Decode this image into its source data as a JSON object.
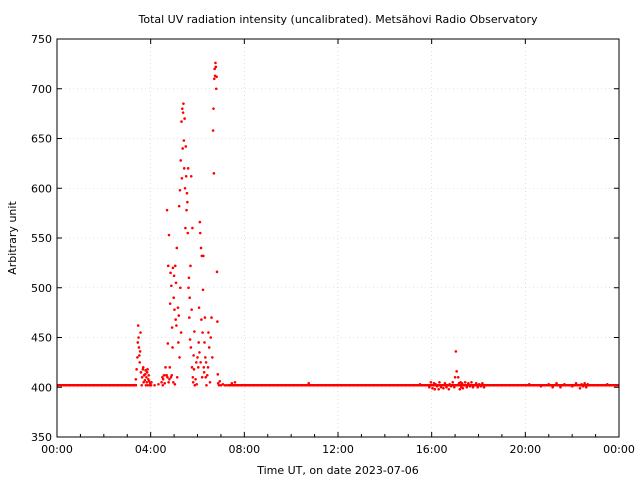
{
  "chart_data": {
    "type": "scatter",
    "title": "Total UV radiation intensity (uncalibrated). Metsähovi Radio Observatory",
    "xlabel": "Time UT, on date 2023-07-06",
    "ylabel": "Arbitrary unit",
    "xlim": [
      "00:00",
      "24:00"
    ],
    "ylim": [
      350,
      750
    ],
    "grid": true,
    "legend": "none",
    "x_ticks": [
      "00:00",
      "04:00",
      "08:00",
      "12:00",
      "16:00",
      "20:00",
      "00:00"
    ],
    "y_ticks": [
      350,
      400,
      450,
      500,
      550,
      600,
      650,
      700,
      750
    ],
    "marker_color": "#ff0000",
    "series": [
      {
        "baseline": {
          "value": 402,
          "time_ranges": [
            [
              "00:00",
              "03:25"
            ],
            [
              "07:20",
              "24:00"
            ]
          ]
        },
        "points": [
          [
            "03:22",
            408
          ],
          [
            "03:24",
            418
          ],
          [
            "03:26",
            430
          ],
          [
            "03:27",
            445
          ],
          [
            "03:28",
            462
          ],
          [
            "03:29",
            450
          ],
          [
            "03:30",
            440
          ],
          [
            "03:31",
            432
          ],
          [
            "03:32",
            425
          ],
          [
            "03:33",
            436
          ],
          [
            "03:34",
            455
          ],
          [
            "03:35",
            415
          ],
          [
            "03:37",
            402
          ],
          [
            "03:38",
            410
          ],
          [
            "03:40",
            418
          ],
          [
            "03:41",
            420
          ],
          [
            "03:42",
            405
          ],
          [
            "03:43",
            412
          ],
          [
            "03:45",
            407
          ],
          [
            "03:46",
            413
          ],
          [
            "03:47",
            417
          ],
          [
            "03:48",
            402
          ],
          [
            "03:49",
            410
          ],
          [
            "03:50",
            405
          ],
          [
            "03:51",
            415
          ],
          [
            "03:52",
            418
          ],
          [
            "03:53",
            402
          ],
          [
            "03:54",
            408
          ],
          [
            "03:55",
            412
          ],
          [
            "03:56",
            406
          ],
          [
            "03:58",
            402
          ],
          [
            "03:59",
            404
          ],
          [
            "04:00",
            402
          ],
          [
            "04:01",
            402
          ],
          [
            "04:02",
            405
          ],
          [
            "04:10",
            402
          ],
          [
            "04:20",
            403
          ],
          [
            "04:28",
            405
          ],
          [
            "04:30",
            410
          ],
          [
            "04:31",
            402
          ],
          [
            "04:32",
            408
          ],
          [
            "04:34",
            412
          ],
          [
            "04:36",
            404
          ],
          [
            "04:38",
            420
          ],
          [
            "04:40",
            412
          ],
          [
            "04:41",
            412
          ],
          [
            "04:42",
            578
          ],
          [
            "04:43",
            410
          ],
          [
            "04:44",
            444
          ],
          [
            "04:45",
            522
          ],
          [
            "04:46",
            405
          ],
          [
            "04:47",
            553
          ],
          [
            "04:48",
            408
          ],
          [
            "04:49",
            420
          ],
          [
            "04:50",
            484
          ],
          [
            "04:51",
            515
          ],
          [
            "04:52",
            410
          ],
          [
            "04:53",
            502
          ],
          [
            "04:54",
            412
          ],
          [
            "04:55",
            460
          ],
          [
            "04:56",
            440
          ],
          [
            "04:57",
            520
          ],
          [
            "04:58",
            405
          ],
          [
            "04:59",
            490
          ],
          [
            "05:00",
            512
          ],
          [
            "05:01",
            478
          ],
          [
            "05:02",
            403
          ],
          [
            "05:03",
            522
          ],
          [
            "05:04",
            468
          ],
          [
            "05:05",
            505
          ],
          [
            "05:06",
            462
          ],
          [
            "05:07",
            540
          ],
          [
            "05:08",
            410
          ],
          [
            "05:10",
            480
          ],
          [
            "05:11",
            445
          ],
          [
            "05:12",
            472
          ],
          [
            "05:13",
            582
          ],
          [
            "05:14",
            430
          ],
          [
            "05:15",
            598
          ],
          [
            "05:16",
            500
          ],
          [
            "05:17",
            628
          ],
          [
            "05:18",
            455
          ],
          [
            "05:19",
            667
          ],
          [
            "05:20",
            610
          ],
          [
            "05:21",
            680
          ],
          [
            "05:22",
            640
          ],
          [
            "05:23",
            676
          ],
          [
            "05:24",
            685
          ],
          [
            "05:25",
            648
          ],
          [
            "05:26",
            620
          ],
          [
            "05:27",
            670
          ],
          [
            "05:28",
            600
          ],
          [
            "05:29",
            560
          ],
          [
            "05:30",
            642
          ],
          [
            "05:31",
            612
          ],
          [
            "05:32",
            578
          ],
          [
            "05:33",
            595
          ],
          [
            "05:34",
            586
          ],
          [
            "05:35",
            555
          ],
          [
            "05:36",
            620
          ],
          [
            "05:37",
            500
          ],
          [
            "05:38",
            510
          ],
          [
            "05:39",
            470
          ],
          [
            "05:40",
            490
          ],
          [
            "05:41",
            448
          ],
          [
            "05:42",
            522
          ],
          [
            "05:43",
            440
          ],
          [
            "05:44",
            612
          ],
          [
            "05:45",
            478
          ],
          [
            "05:46",
            420
          ],
          [
            "05:47",
            560
          ],
          [
            "05:48",
            410
          ],
          [
            "05:49",
            405
          ],
          [
            "05:50",
            432
          ],
          [
            "05:51",
            418
          ],
          [
            "05:52",
            456
          ],
          [
            "05:53",
            402
          ],
          [
            "05:55",
            408
          ],
          [
            "05:57",
            425
          ],
          [
            "05:58",
            403
          ],
          [
            "06:00",
            430
          ],
          [
            "06:02",
            420
          ],
          [
            "06:03",
            445
          ],
          [
            "06:04",
            480
          ],
          [
            "06:05",
            435
          ],
          [
            "06:06",
            566
          ],
          [
            "06:07",
            555
          ],
          [
            "06:08",
            425
          ],
          [
            "06:09",
            540
          ],
          [
            "06:10",
            468
          ],
          [
            "06:11",
            532
          ],
          [
            "06:12",
            410
          ],
          [
            "06:13",
            455
          ],
          [
            "06:14",
            498
          ],
          [
            "06:15",
            532
          ],
          [
            "06:16",
            420
          ],
          [
            "06:17",
            415
          ],
          [
            "06:18",
            445
          ],
          [
            "06:19",
            470
          ],
          [
            "06:20",
            430
          ],
          [
            "06:21",
            410
          ],
          [
            "06:22",
            425
          ],
          [
            "06:23",
            402
          ],
          [
            "06:25",
            412
          ],
          [
            "06:27",
            420
          ],
          [
            "06:28",
            455
          ],
          [
            "06:30",
            440
          ],
          [
            "06:32",
            405
          ],
          [
            "06:34",
            450
          ],
          [
            "06:36",
            470
          ],
          [
            "06:38",
            430
          ],
          [
            "06:40",
            658
          ],
          [
            "06:41",
            680
          ],
          [
            "06:42",
            615
          ],
          [
            "06:43",
            710
          ],
          [
            "06:44",
            720
          ],
          [
            "06:45",
            713
          ],
          [
            "06:46",
            726
          ],
          [
            "06:47",
            722
          ],
          [
            "06:48",
            700
          ],
          [
            "06:49",
            712
          ],
          [
            "06:50",
            516
          ],
          [
            "06:51",
            466
          ],
          [
            "06:52",
            413
          ],
          [
            "06:53",
            404
          ],
          [
            "06:55",
            402
          ],
          [
            "06:57",
            406
          ],
          [
            "07:00",
            402
          ],
          [
            "07:05",
            403
          ],
          [
            "07:10",
            402
          ],
          [
            "07:15",
            402
          ],
          [
            "07:20",
            402
          ],
          [
            "07:28",
            404
          ],
          [
            "07:30",
            402
          ],
          [
            "07:36",
            405
          ],
          [
            "07:55",
            402
          ],
          [
            "08:30",
            402
          ],
          [
            "09:20",
            402
          ],
          [
            "10:30",
            402
          ],
          [
            "10:45",
            404
          ],
          [
            "11:20",
            402
          ],
          [
            "12:30",
            402
          ],
          [
            "13:30",
            402
          ],
          [
            "14:30",
            402
          ],
          [
            "15:30",
            403
          ],
          [
            "15:54",
            400
          ],
          [
            "15:58",
            405
          ],
          [
            "16:02",
            399
          ],
          [
            "16:06",
            404
          ],
          [
            "16:08",
            398
          ],
          [
            "16:10",
            403
          ],
          [
            "16:14",
            401
          ],
          [
            "16:18",
            398
          ],
          [
            "16:20",
            405
          ],
          [
            "16:24",
            400
          ],
          [
            "16:28",
            402
          ],
          [
            "16:30",
            399
          ],
          [
            "16:34",
            404
          ],
          [
            "16:38",
            400
          ],
          [
            "16:40",
            402
          ],
          [
            "16:44",
            398
          ],
          [
            "16:46",
            403
          ],
          [
            "16:50",
            401
          ],
          [
            "16:54",
            405
          ],
          [
            "16:58",
            400
          ],
          [
            "17:00",
            410
          ],
          [
            "17:02",
            436
          ],
          [
            "17:04",
            416
          ],
          [
            "17:06",
            402
          ],
          [
            "17:08",
            410
          ],
          [
            "17:10",
            404
          ],
          [
            "17:12",
            398
          ],
          [
            "17:14",
            405
          ],
          [
            "17:16",
            400
          ],
          [
            "17:18",
            404
          ],
          [
            "17:20",
            399
          ],
          [
            "17:22",
            402
          ],
          [
            "17:26",
            405
          ],
          [
            "17:30",
            400
          ],
          [
            "17:34",
            404
          ],
          [
            "17:38",
            401
          ],
          [
            "17:42",
            405
          ],
          [
            "17:46",
            400
          ],
          [
            "17:50",
            402
          ],
          [
            "17:54",
            404
          ],
          [
            "17:58",
            400
          ],
          [
            "18:02",
            403
          ],
          [
            "18:06",
            401
          ],
          [
            "18:10",
            404
          ],
          [
            "18:14",
            400
          ],
          [
            "19:30",
            402
          ],
          [
            "20:10",
            403
          ],
          [
            "20:40",
            401
          ],
          [
            "21:00",
            403
          ],
          [
            "21:10",
            400
          ],
          [
            "21:20",
            404
          ],
          [
            "21:30",
            400
          ],
          [
            "21:40",
            403
          ],
          [
            "22:00",
            401
          ],
          [
            "22:10",
            404
          ],
          [
            "22:20",
            399
          ],
          [
            "22:24",
            403
          ],
          [
            "22:28",
            401
          ],
          [
            "22:32",
            404
          ],
          [
            "22:36",
            400
          ],
          [
            "22:40",
            403
          ],
          [
            "22:45",
            402
          ],
          [
            "23:00",
            402
          ],
          [
            "23:30",
            403
          ]
        ]
      }
    ]
  }
}
